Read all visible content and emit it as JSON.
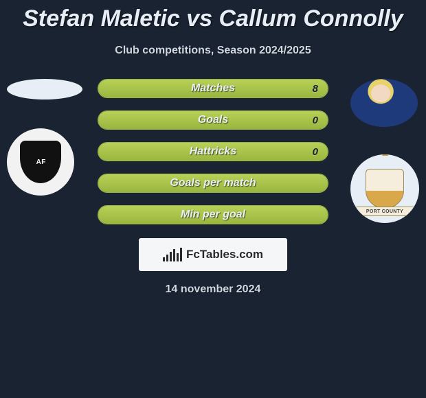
{
  "title": "Stefan Maletic vs Callum Connolly",
  "subtitle": "Club competitions, Season 2024/2025",
  "date_text": "14 november 2024",
  "watermark_text": "FcTables.com",
  "crest_banner_text": "PORT COUNTY",
  "colors": {
    "background": "#1a2332",
    "bar_border": "#9bb34a",
    "bar_fill_top": "#b8d157",
    "bar_fill_bottom": "#99b63f",
    "text_light": "#e8eef5",
    "text_muted": "#d0d8e2",
    "watermark_bg": "#f4f6f8",
    "watermark_fg": "#2a2a2a"
  },
  "stats": [
    {
      "label": "Matches",
      "value": "8",
      "fill_pct": 100
    },
    {
      "label": "Goals",
      "value": "0",
      "fill_pct": 100
    },
    {
      "label": "Hattricks",
      "value": "0",
      "fill_pct": 100
    },
    {
      "label": "Goals per match",
      "value": "",
      "fill_pct": 100
    },
    {
      "label": "Min per goal",
      "value": "",
      "fill_pct": 100
    }
  ],
  "wm_bars": [
    6,
    10,
    14,
    18,
    12,
    20
  ]
}
